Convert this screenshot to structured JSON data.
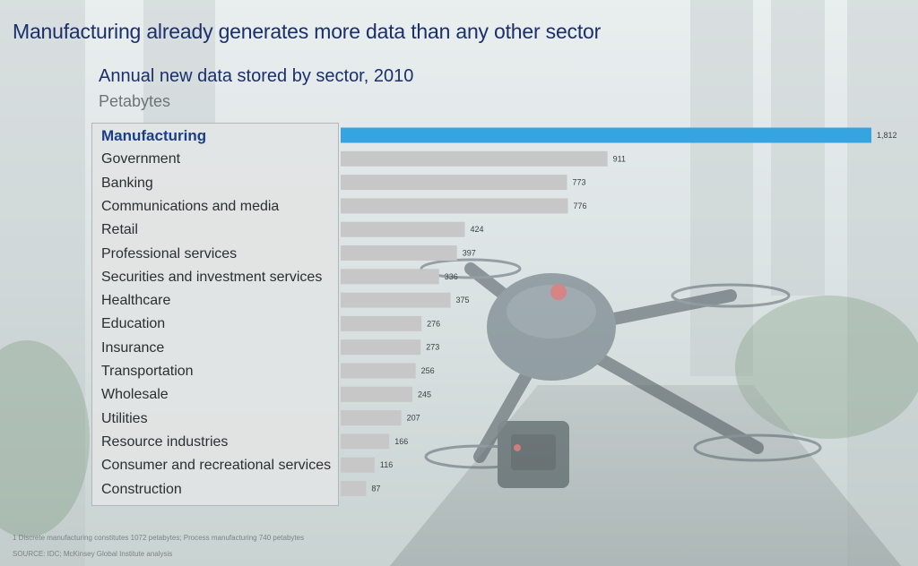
{
  "page": {
    "headline": "Manufacturing already generates more data than any other sector",
    "footnote": "1 Discrete manufacturing constitutes 1072 petabytes; Process manufacturing 740 petabytes",
    "source": "SOURCE: IDC; McKinsey Global Institute analysis"
  },
  "chart_data": {
    "type": "bar",
    "orientation": "horizontal",
    "title": "Annual new data stored by sector, 2010",
    "unit": "Petabytes",
    "categories": [
      "Manufacturing",
      "Government",
      "Banking",
      "Communications and media",
      "Retail",
      "Professional services",
      "Securities and investment services",
      "Healthcare",
      "Education",
      "Insurance",
      "Transportation",
      "Wholesale",
      "Utilities",
      "Resource industries",
      "Consumer and recreational services",
      "Construction"
    ],
    "values": [
      1812,
      911,
      773,
      776,
      424,
      397,
      336,
      375,
      276,
      273,
      256,
      245,
      207,
      166,
      116,
      87
    ],
    "value_labels": [
      "1,812",
      "911",
      "773",
      "776",
      "424",
      "397",
      "336",
      "375",
      "276",
      "273",
      "256",
      "245",
      "207",
      "166",
      "116",
      "87"
    ],
    "highlight": "Manufacturing",
    "colors": {
      "highlight": "#35a4e0",
      "default": "#c7c7c7"
    },
    "grid": false
  }
}
